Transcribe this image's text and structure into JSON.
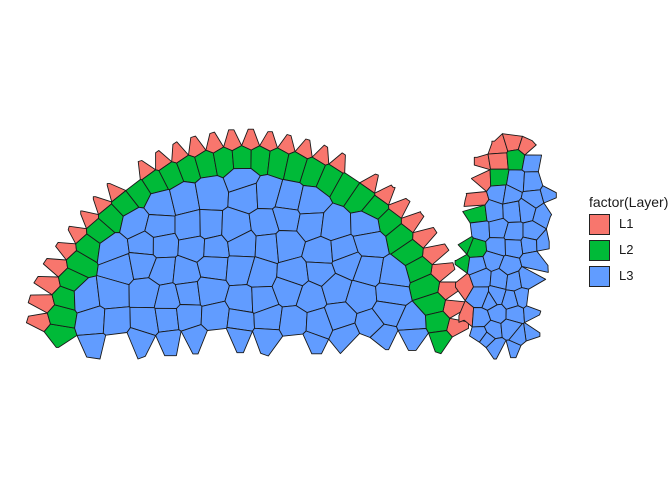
{
  "chart_data": {
    "type": "other",
    "description_type": "segmented cell map (tessellated cells colored by layer)",
    "title": "",
    "xlabel": "",
    "ylabel": "",
    "axes_visible": false,
    "grid": false,
    "legend_title": "factor(Layer)",
    "legend_position": "right",
    "categories": [
      "L1",
      "L2",
      "L3"
    ],
    "colors": {
      "L1": "#F8766D",
      "L2": "#00BA38",
      "L3": "#619CFF"
    },
    "cell_outline_color": "#1a1a1a"
  }
}
